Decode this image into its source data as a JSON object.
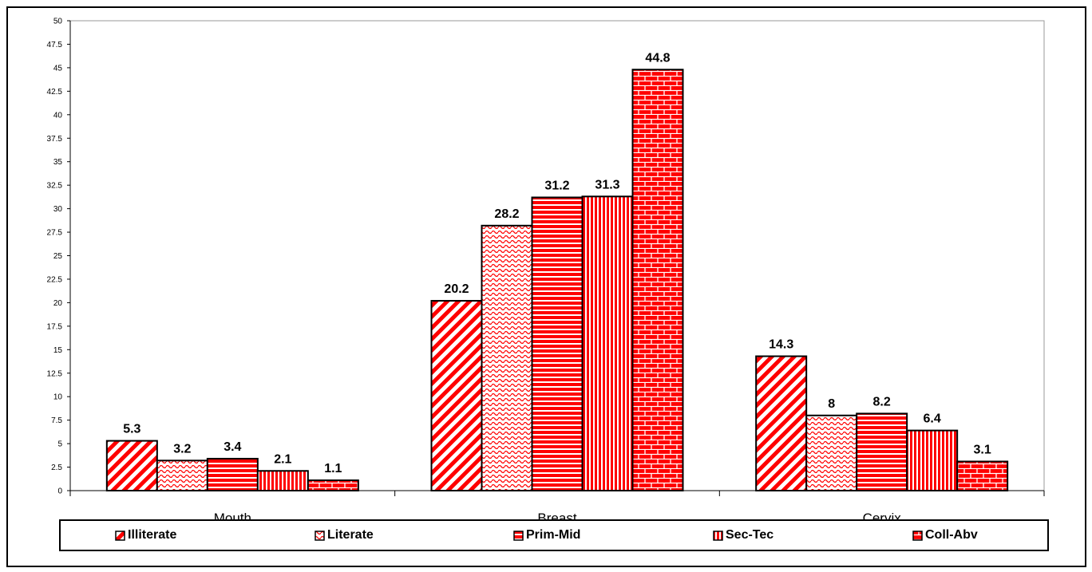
{
  "chart_data": {
    "type": "bar",
    "categories": [
      "Mouth",
      "Breast",
      "Cervix"
    ],
    "series": [
      {
        "name": "Illiterate",
        "values": [
          5.3,
          20.2,
          14.3
        ],
        "pattern": "diagonal-stripes"
      },
      {
        "name": "Literate",
        "values": [
          3.2,
          28.2,
          8
        ],
        "pattern": "waves"
      },
      {
        "name": "Prim-Mid",
        "values": [
          3.4,
          31.2,
          8.2
        ],
        "pattern": "horizontal-stripes"
      },
      {
        "name": "Sec-Tec",
        "values": [
          2.1,
          31.3,
          6.4
        ],
        "pattern": "vertical-stripes"
      },
      {
        "name": "Coll-Abv",
        "values": [
          1.1,
          44.8,
          3.1
        ],
        "pattern": "bricks"
      }
    ],
    "data_labels": [
      [
        "5.3",
        "20.2",
        "14.3"
      ],
      [
        "3.2",
        "28.2",
        "8"
      ],
      [
        "3.4",
        "31.2",
        "8.2"
      ],
      [
        "2.1",
        "31.3",
        "6.4"
      ],
      [
        "1.1",
        "44.8",
        "3.1"
      ]
    ],
    "ylim": [
      0,
      50
    ],
    "ytick_step": 2.5,
    "yticks": [
      "0",
      "2.5",
      "5",
      "7.5",
      "10",
      "12.5",
      "15",
      "17.5",
      "20",
      "22.5",
      "25",
      "27.5",
      "30",
      "32.5",
      "35",
      "37.5",
      "40",
      "42.5",
      "45",
      "47.5",
      "50"
    ],
    "title": "",
    "xlabel": "",
    "ylabel": "",
    "grid": false,
    "legend_position": "bottom",
    "colors": {
      "bar_fill": "#ff0000",
      "bar_stroke": "#000000",
      "plot_border": "#999999",
      "background": "#ffffff"
    }
  }
}
